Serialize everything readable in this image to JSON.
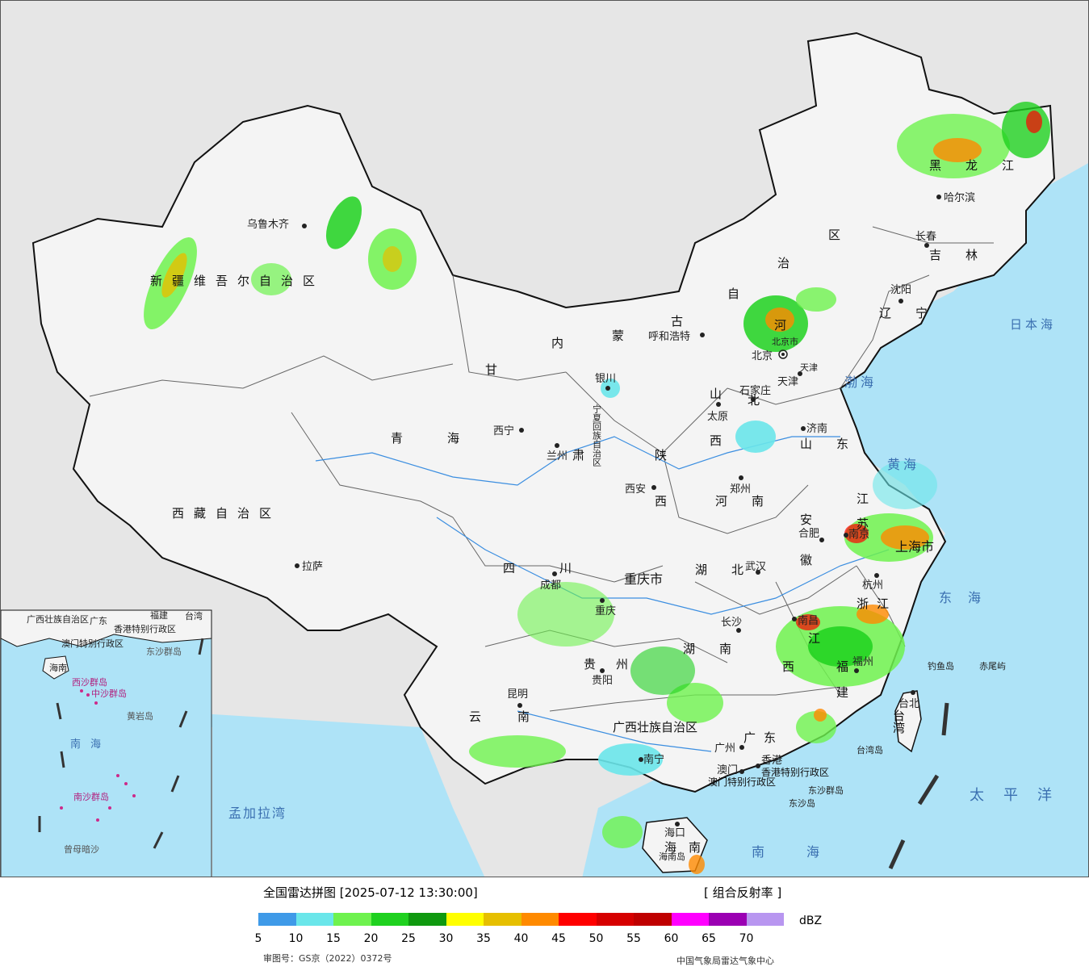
{
  "legend": {
    "title": "全国雷达拼图 [2025-07-12 13:30:00]",
    "product": "[ 组合反射率 ]",
    "unit": "dBZ",
    "review_number": "审图号：GS京（2022）0372号",
    "source": "中国气象局雷达气象中心",
    "colors": [
      "#3f9ae8",
      "#6ae6ea",
      "#6ef24e",
      "#1fd11f",
      "#0f990f",
      "#ffff00",
      "#e6bf00",
      "#ff8a00",
      "#ff0000",
      "#d60000",
      "#bf0000",
      "#ff00ff",
      "#9b00b3",
      "#b896f0"
    ],
    "ticks": [
      "5",
      "10",
      "15",
      "20",
      "25",
      "30",
      "35",
      "40",
      "45",
      "50",
      "55",
      "60",
      "65",
      "70"
    ]
  },
  "regions": {
    "xinjiang": "新疆维吾尔自治区",
    "xizang": "西藏自治区",
    "qinghai": "青海",
    "gansu": "甘",
    "neimenggu_a": "内",
    "neimenggu_b": "蒙",
    "neimenggu_c": "古",
    "neimenggu_d": "自",
    "neimenggu_e": "治",
    "neimenggu_f": "区",
    "heilongjiang": "黑龙江",
    "jilin": "吉林",
    "liaoning": "辽宁",
    "hebei_a": "河",
    "hebei_b": "北",
    "shanxi_a": "山",
    "shanxi_b": "西",
    "shandong": "山东",
    "henan": "河南",
    "shaanxi_a": "陕",
    "shaanxi_b": "西",
    "ningxia": "宁夏回族自治区",
    "gansu_b": "肃",
    "sichuan": "四川",
    "chongqing": "重庆市",
    "hubei": "湖北",
    "anhui_a": "安",
    "anhui_b": "徽",
    "jiangsu_a": "江",
    "jiangsu_b": "苏",
    "zhejiang": "浙江",
    "jiangxi_a": "江",
    "jiangxi_b": "西",
    "hunan": "湖南",
    "fujian_a": "福",
    "fujian_b": "建",
    "guizhou": "贵州",
    "yunnan": "云南",
    "guangxi": "广西壮族自治区",
    "guangdong": "广东",
    "hainan": "海南",
    "taiwan": "台湾",
    "shanghai": "上海市",
    "beijing": "北京市",
    "tianjin": "天津"
  },
  "cities": {
    "urumqi": "乌鲁木齐",
    "lhasa": "拉萨",
    "xining": "西宁",
    "lanzhou": "兰州",
    "yinchuan": "银川",
    "hohhot": "呼和浩特",
    "beijing": "北京",
    "tianjin": "天津",
    "shijiazhuang": "石家庄",
    "taiyuan": "太原",
    "jinan": "济南",
    "zhengzhou": "郑州",
    "xian": "西安",
    "chengdu": "成都",
    "chongqing": "重庆",
    "wuhan": "武汉",
    "hefei": "合肥",
    "nanjing": "南京",
    "hangzhou": "杭州",
    "changsha": "长沙",
    "nanchang": "南昌",
    "fuzhou": "福州",
    "guiyang": "贵阳",
    "kunming": "昆明",
    "nanning": "南宁",
    "guangzhou": "广州",
    "macau": "澳门",
    "hongkong": "香港",
    "haikou": "海口",
    "taibei": "台北",
    "shenyang": "沈阳",
    "changchun": "长春",
    "harbin": "哈尔滨"
  },
  "special": {
    "hk_sar": "香港特别行政区",
    "macau_sar": "澳门特别行政区",
    "dongsha_islands": "东沙群岛",
    "dongsha_island": "东沙岛",
    "diaoyu": "钓鱼岛",
    "chiwei": "赤尾屿",
    "taiwan_island": "台湾岛",
    "hainan_island": "海南岛"
  },
  "seas": {
    "sea_of_japan": "日本海",
    "bohai": "渤海",
    "yellow_sea": "黄海",
    "east_sea": "东海",
    "pacific": "太平洋",
    "south_sea": "南海",
    "bay_of_bengal": "孟加拉湾"
  },
  "inset": {
    "south_sea": "南海",
    "hk": "香港特别行政区",
    "macau": "澳门特别行政区",
    "dongsha": "东沙群岛",
    "xisha": "西沙群岛",
    "zhongsha": "中沙群岛",
    "huangyan": "黄岩岛",
    "nansha": "南沙群岛",
    "zengmu": "曾母暗沙",
    "hainan": "海南",
    "taiwan": "台湾",
    "guangdong": "广东",
    "fujian": "福建",
    "guangxi": "广西壮族自治区"
  }
}
